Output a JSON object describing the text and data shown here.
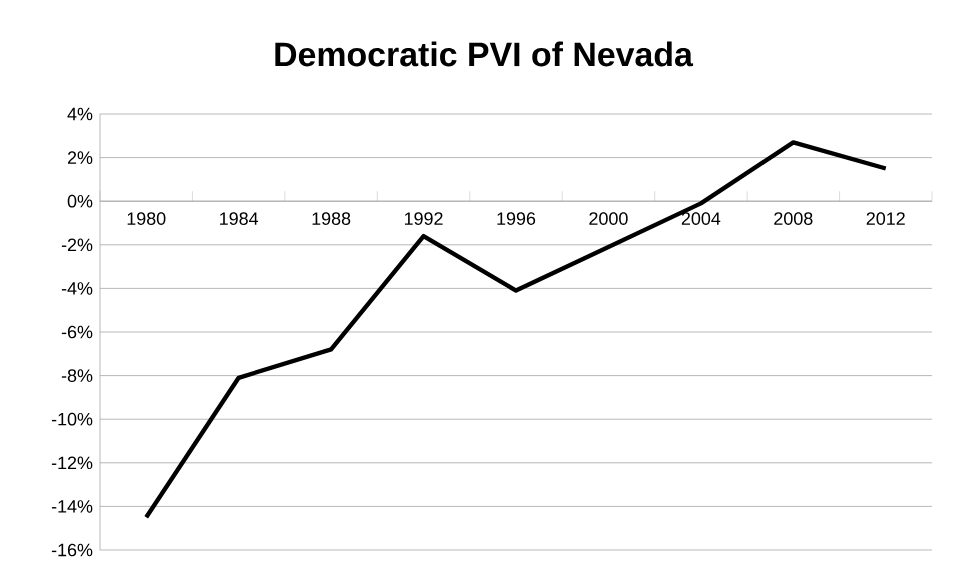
{
  "chart_data": {
    "type": "line",
    "title": "Democratic PVI of Nevada",
    "categories": [
      "1980",
      "1984",
      "1988",
      "1992",
      "1996",
      "2000",
      "2004",
      "2008",
      "2012"
    ],
    "series": [
      {
        "color": "#000000",
        "values": [
          -14.5,
          -8.1,
          -6.8,
          -1.6,
          -4.1,
          -2.1,
          -0.1,
          2.7,
          1.5
        ]
      }
    ],
    "ylim": [
      -16,
      4
    ],
    "yticks": [
      {
        "value": -16,
        "label": "-16%"
      },
      {
        "value": -14,
        "label": "-14%"
      },
      {
        "value": -12,
        "label": "-12%"
      },
      {
        "value": -10,
        "label": "-10%"
      },
      {
        "value": -8,
        "label": "-8%"
      },
      {
        "value": -6,
        "label": "-6%"
      },
      {
        "value": -4,
        "label": "-4%"
      },
      {
        "value": -2,
        "label": "-2%"
      },
      {
        "value": 0,
        "label": "0%"
      },
      {
        "value": 2,
        "label": "2%"
      },
      {
        "value": 4,
        "label": "4%"
      }
    ],
    "grid": "y",
    "marker": "none",
    "line_style": "solid"
  }
}
